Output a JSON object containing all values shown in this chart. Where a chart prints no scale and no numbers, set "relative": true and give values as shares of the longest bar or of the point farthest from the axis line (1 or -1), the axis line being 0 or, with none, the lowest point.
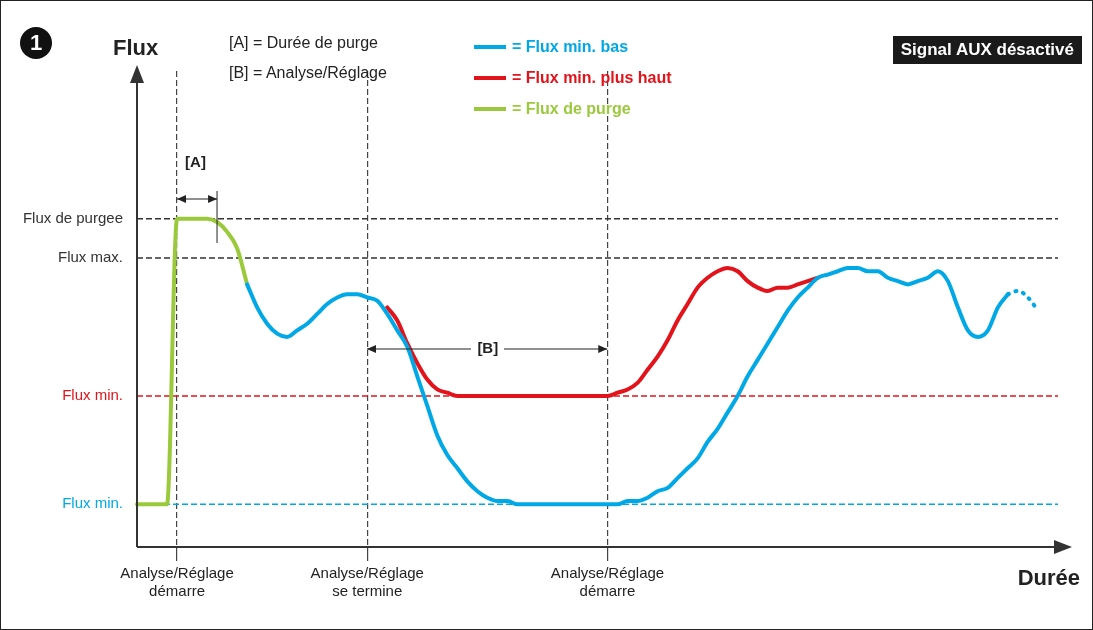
{
  "chart_data": {
    "type": "line",
    "relative": true,
    "xlabel": "Durée",
    "categories": [
      null,
      null,
      null,
      null,
      "Analyse/Réglage démarre",
      null,
      null,
      null,
      null,
      null,
      null,
      null,
      null,
      null,
      null,
      null,
      null,
      null,
      null,
      null,
      null,
      null,
      null,
      "Analyse/Réglage se termine",
      null,
      null,
      null,
      null,
      null,
      null,
      null,
      null,
      null,
      null,
      null,
      null,
      null,
      null,
      null,
      null,
      null,
      null,
      null,
      null,
      null,
      null,
      null,
      "Analyse/Réglage démarre",
      null,
      null,
      null,
      null,
      null,
      null,
      null,
      null,
      null,
      null,
      null,
      null,
      null,
      null,
      null,
      null,
      null,
      null,
      null,
      null,
      null,
      null,
      null,
      null,
      null,
      null,
      null,
      null,
      null,
      null,
      null,
      null,
      null,
      null,
      null,
      null,
      null,
      null,
      null,
      null,
      null,
      null,
      null,
      null,
      null,
      null
    ],
    "series": [
      {
        "name": "= Flux min. bas",
        "color": "#00a8e6",
        "values": [
          null,
          null,
          null,
          null,
          null,
          null,
          null,
          null,
          null,
          null,
          null,
          0.8,
          0.73,
          0.68,
          0.65,
          0.64,
          0.66,
          0.68,
          0.71,
          0.74,
          0.76,
          0.77,
          0.77,
          0.76,
          0.75,
          0.71,
          0.66,
          0.61,
          0.52,
          0.43,
          0.34,
          0.28,
          0.24,
          0.2,
          0.17,
          0.15,
          0.14,
          0.14,
          0.13,
          0.13,
          0.13,
          0.13,
          0.13,
          0.13,
          0.13,
          0.13,
          0.13,
          0.13,
          0.13,
          0.14,
          0.14,
          0.15,
          0.17,
          0.18,
          0.21,
          0.24,
          0.27,
          0.32,
          0.36,
          0.41,
          0.46,
          0.52,
          0.57,
          0.62,
          0.67,
          0.72,
          0.76,
          0.79,
          0.82,
          0.83,
          0.84,
          0.85,
          0.85,
          0.84,
          0.84,
          0.82,
          0.81,
          0.8,
          0.81,
          0.82,
          0.84,
          0.81,
          0.73,
          0.66,
          0.64,
          0.66,
          0.73,
          0.77,
          null,
          null,
          null,
          null,
          null,
          null
        ]
      },
      {
        "name": "= Flux min. plus haut",
        "color": "#e3131b",
        "values": [
          null,
          null,
          null,
          null,
          null,
          null,
          null,
          null,
          null,
          null,
          null,
          null,
          null,
          null,
          null,
          null,
          null,
          null,
          null,
          null,
          null,
          null,
          null,
          null,
          null,
          0.73,
          0.69,
          0.62,
          0.56,
          0.51,
          0.48,
          0.47,
          0.46,
          0.46,
          0.46,
          0.46,
          0.46,
          0.46,
          0.46,
          0.46,
          0.46,
          0.46,
          0.46,
          0.46,
          0.46,
          0.46,
          0.46,
          0.46,
          0.47,
          0.48,
          0.5,
          0.54,
          0.58,
          0.63,
          0.69,
          0.74,
          0.79,
          0.82,
          0.84,
          0.85,
          0.84,
          0.81,
          0.79,
          0.78,
          0.79,
          0.79,
          0.8,
          0.81,
          0.82,
          null,
          null,
          null,
          null,
          null,
          null,
          null,
          null,
          null,
          null,
          null,
          null,
          null,
          null,
          null,
          null,
          null,
          null,
          null,
          null,
          null,
          null,
          null,
          null,
          null
        ]
      },
      {
        "name": "= Flux de purge",
        "color": "#9bc93c",
        "values": [
          0.13,
          0.13,
          0.13,
          0.13,
          1,
          1,
          1,
          1,
          0.99,
          0.96,
          0.91,
          0.8,
          null,
          null,
          null,
          null,
          null,
          null,
          null,
          null,
          null,
          null,
          null,
          null,
          null,
          null,
          null,
          null,
          null,
          null,
          null,
          null,
          null,
          null,
          null,
          null,
          null,
          null,
          null,
          null,
          null,
          null,
          null,
          null,
          null,
          null,
          null,
          null,
          null,
          null,
          null,
          null,
          null,
          null,
          null,
          null,
          null,
          null,
          null,
          null,
          null,
          null,
          null,
          null,
          null,
          null,
          null,
          null,
          null,
          null,
          null,
          null,
          null,
          null,
          null,
          null,
          null,
          null,
          null,
          null,
          null,
          null,
          null,
          null,
          null,
          null,
          null,
          null,
          null,
          null,
          null,
          null,
          null,
          null
        ]
      },
      {
        "color": "#00a8e6",
        "line_style": "dotted",
        "values": [
          null,
          null,
          null,
          null,
          null,
          null,
          null,
          null,
          null,
          null,
          null,
          null,
          null,
          null,
          null,
          null,
          null,
          null,
          null,
          null,
          null,
          null,
          null,
          null,
          null,
          null,
          null,
          null,
          null,
          null,
          null,
          null,
          null,
          null,
          null,
          null,
          null,
          null,
          null,
          null,
          null,
          null,
          null,
          null,
          null,
          null,
          null,
          null,
          null,
          null,
          null,
          null,
          null,
          null,
          null,
          null,
          null,
          null,
          null,
          null,
          null,
          null,
          null,
          null,
          null,
          null,
          null,
          null,
          null,
          null,
          null,
          null,
          null,
          null,
          null,
          null,
          null,
          null,
          null,
          null,
          null,
          null,
          null,
          null,
          null,
          null,
          null,
          0.77,
          0.78,
          0.76,
          0.72,
          null,
          null,
          null
        ]
      }
    ],
    "ref_lines": [
      {
        "axis": "y",
        "value": 1,
        "label": "Flux de purgee",
        "color": "#333333",
        "line_style": "dashed"
      },
      {
        "axis": "y",
        "value": 0.88,
        "label": "Flux max.",
        "color": "#333333",
        "line_style": "dashed"
      },
      {
        "axis": "y",
        "value": 0.46,
        "label": "Flux min.",
        "color": "#e3131b",
        "line_style": "dashed"
      },
      {
        "axis": "y",
        "value": 0.13,
        "label": "Flux min.",
        "color": "#00a8e6",
        "line_style": "dashed"
      }
    ],
    "annotations": [
      "1",
      "[A] = Durée de purge",
      "[B] = Analyse/Réglage",
      "Signal AUX désactivé",
      "[A]",
      "[B]",
      "Flux"
    ],
    "legend": "top",
    "grid": "x",
    "marker": "none",
    "line_style": "solid"
  }
}
